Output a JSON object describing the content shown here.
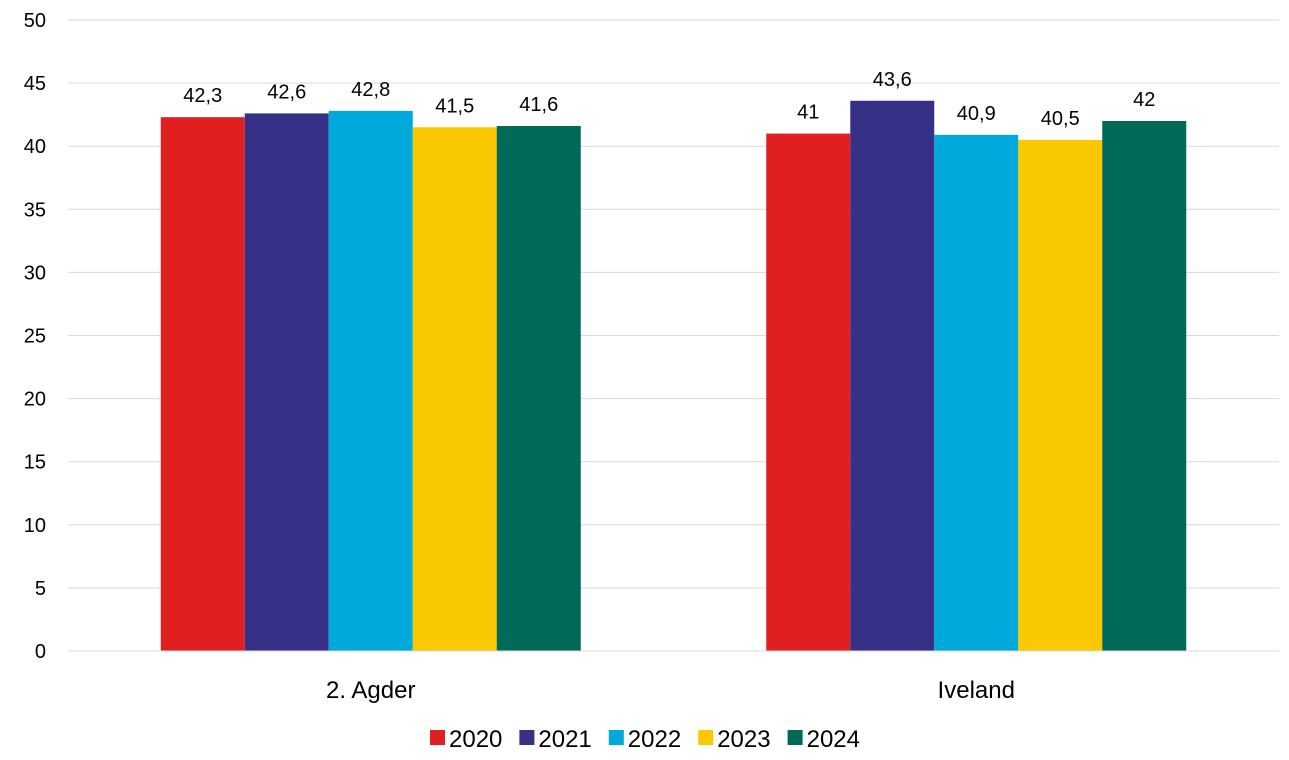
{
  "chart_data": {
    "type": "bar",
    "title": "",
    "xlabel": "",
    "ylabel": "",
    "ylim": [
      0,
      50
    ],
    "yticks": [
      0,
      5,
      10,
      15,
      20,
      25,
      30,
      35,
      40,
      45,
      50
    ],
    "grid": true,
    "legend_position": "bottom",
    "categories": [
      "2. Agder",
      "Iveland"
    ],
    "series": [
      {
        "name": "2020",
        "color": "#E02020",
        "values": [
          42.3,
          41.0
        ],
        "labels": [
          "42,3",
          "41"
        ]
      },
      {
        "name": "2021",
        "color": "#363087",
        "values": [
          42.6,
          43.6
        ],
        "labels": [
          "42,6",
          "43,6"
        ]
      },
      {
        "name": "2022",
        "color": "#00A9DC",
        "values": [
          42.8,
          40.9
        ],
        "labels": [
          "42,8",
          "40,9"
        ]
      },
      {
        "name": "2023",
        "color": "#F9C800",
        "values": [
          41.5,
          40.5
        ],
        "labels": [
          "41,5",
          "40,5"
        ]
      },
      {
        "name": "2024",
        "color": "#006A59",
        "values": [
          41.6,
          42.0
        ],
        "labels": [
          "41,6",
          "42"
        ]
      }
    ]
  }
}
